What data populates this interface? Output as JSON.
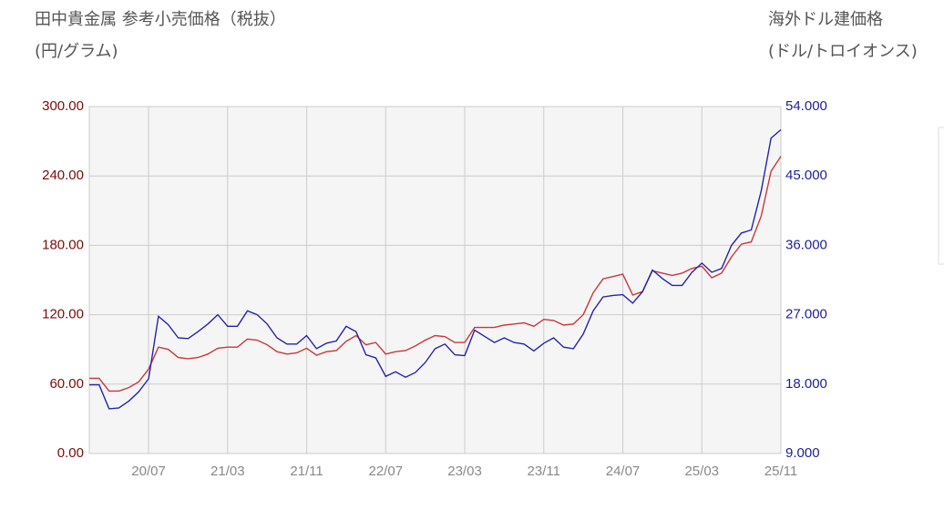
{
  "chart_data": {
    "type": "line",
    "title": "田中貴金属 参考小売価格（税抜）",
    "y_label": "(円/グラム)",
    "y2_title": "海外ドル建価格",
    "y2_label": "(ドル/トロイオンス)",
    "categories": [
      null,
      null,
      null,
      null,
      null,
      null,
      "20/07",
      null,
      null,
      null,
      null,
      null,
      null,
      null,
      "21/03",
      null,
      null,
      null,
      null,
      null,
      null,
      null,
      "21/11",
      null,
      null,
      null,
      null,
      null,
      null,
      null,
      "22/07",
      null,
      null,
      null,
      null,
      null,
      null,
      null,
      "23/03",
      null,
      null,
      null,
      null,
      null,
      null,
      null,
      "23/11",
      null,
      null,
      null,
      null,
      null,
      null,
      null,
      "24/07",
      null,
      null,
      null,
      null,
      null,
      null,
      null,
      "25/03",
      null,
      null,
      null,
      null,
      null,
      null,
      null,
      "25/11"
    ],
    "series": [
      {
        "color": "#c8373c",
        "values": [
          65,
          65,
          54,
          54,
          57,
          62,
          73,
          92,
          90,
          83,
          82,
          83,
          86,
          91,
          92,
          92,
          99,
          98,
          94,
          88,
          86,
          87,
          91,
          85,
          88,
          89,
          97,
          102,
          94,
          96,
          86,
          88,
          89,
          93,
          98,
          102,
          101,
          96,
          96,
          109,
          109,
          109,
          111,
          112,
          113,
          110,
          116,
          115,
          111,
          112,
          120,
          139,
          151,
          153,
          155,
          137,
          140,
          158,
          156,
          154,
          156,
          160,
          162,
          152,
          156,
          170,
          181,
          183,
          205,
          244,
          257
        ]
      },
      {
        "color": "#2424a8",
        "axis": "y2",
        "values": [
          17.9,
          17.9,
          14.8,
          14.9,
          15.8,
          17.0,
          18.7,
          26.8,
          25.7,
          24.0,
          23.9,
          24.8,
          25.8,
          27.0,
          25.5,
          25.5,
          27.5,
          27.0,
          25.8,
          24.0,
          23.2,
          23.2,
          24.3,
          22.6,
          23.3,
          23.6,
          25.5,
          24.8,
          21.8,
          21.4,
          19.0,
          19.6,
          18.9,
          19.5,
          20.8,
          22.6,
          23.2,
          21.8,
          21.7,
          25.0,
          24.2,
          23.4,
          24.0,
          23.4,
          23.2,
          22.3,
          23.3,
          24.0,
          22.8,
          22.6,
          24.5,
          27.5,
          29.3,
          29.5,
          29.6,
          28.5,
          30.0,
          32.8,
          31.7,
          30.8,
          30.8,
          32.5,
          33.7,
          32.5,
          33.0,
          36.0,
          37.6,
          38.0,
          43.0,
          49.9,
          51.0
        ]
      }
    ],
    "ylim": [
      0,
      300
    ],
    "yticks": [
      {
        "value": 0,
        "label": "0.00"
      },
      {
        "value": 60,
        "label": "60.00"
      },
      {
        "value": 120,
        "label": "120.00"
      },
      {
        "value": 180,
        "label": "180.00"
      },
      {
        "value": 240,
        "label": "240.00"
      },
      {
        "value": 300,
        "label": "300.00"
      }
    ],
    "y2lim": [
      9,
      54
    ],
    "y2ticks": [
      {
        "value": 9,
        "label": "9.000"
      },
      {
        "value": 18,
        "label": "18.000"
      },
      {
        "value": 27,
        "label": "27.000"
      },
      {
        "value": 36,
        "label": "36.000"
      },
      {
        "value": 45,
        "label": "45.000"
      },
      {
        "value": 54,
        "label": "54.000"
      }
    ],
    "grid": true
  }
}
